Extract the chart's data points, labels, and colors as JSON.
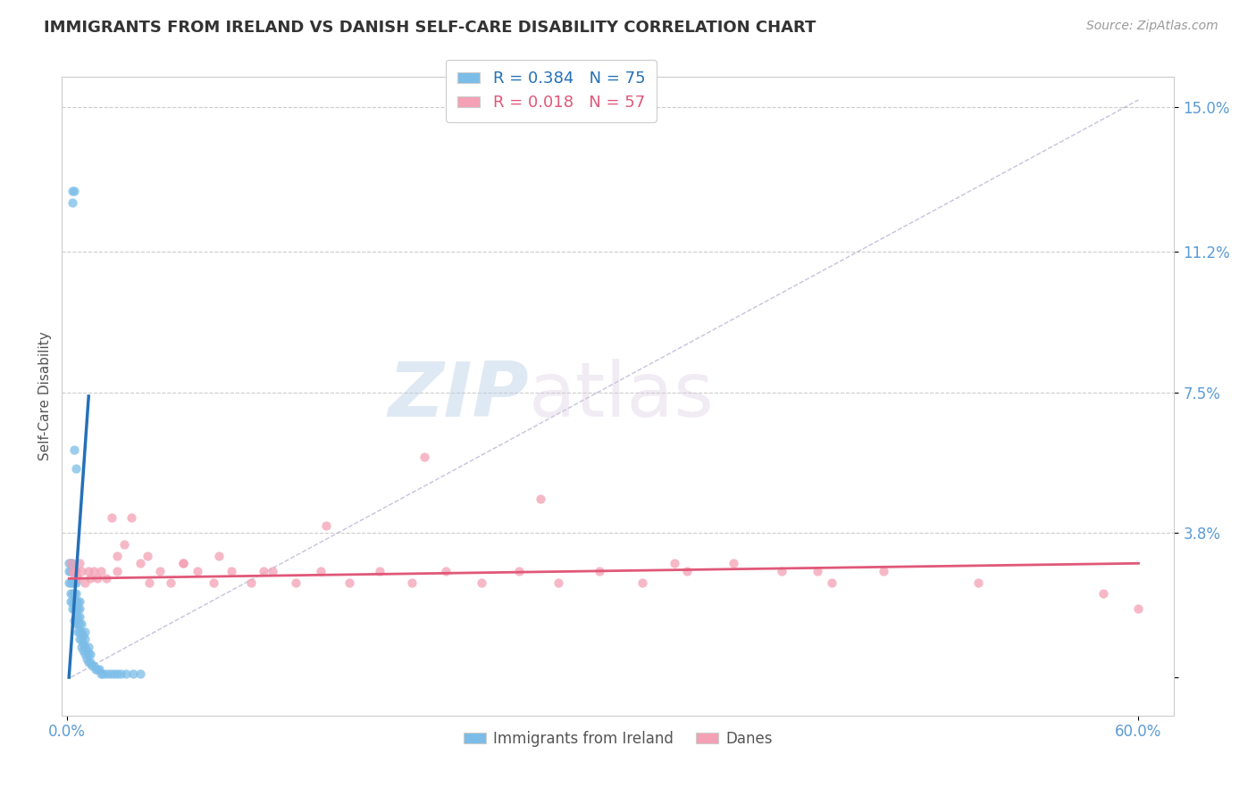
{
  "title": "IMMIGRANTS FROM IRELAND VS DANISH SELF-CARE DISABILITY CORRELATION CHART",
  "source": "Source: ZipAtlas.com",
  "ylabel": "Self-Care Disability",
  "yticks": [
    0.0,
    0.038,
    0.075,
    0.112,
    0.15
  ],
  "ytick_labels": [
    "",
    "3.8%",
    "7.5%",
    "11.2%",
    "15.0%"
  ],
  "xlim": [
    -0.003,
    0.62
  ],
  "ylim": [
    -0.01,
    0.158
  ],
  "legend_1_label": "Immigrants from Ireland",
  "legend_2_label": "Danes",
  "r1": 0.384,
  "n1": 75,
  "r2": 0.018,
  "n2": 57,
  "color_blue": "#7bbde8",
  "color_pink": "#f4a0b5",
  "color_line_blue": "#2471b8",
  "color_line_pink": "#e05878",
  "watermark_zip": "ZIP",
  "watermark_atlas": "atlas",
  "background_color": "#ffffff",
  "grid_color": "#cccccc",
  "title_color": "#333333",
  "axis_label_color": "#5b9bd5",
  "ireland_x": [
    0.001,
    0.001,
    0.001,
    0.002,
    0.002,
    0.002,
    0.002,
    0.002,
    0.003,
    0.003,
    0.003,
    0.003,
    0.003,
    0.003,
    0.004,
    0.004,
    0.004,
    0.004,
    0.004,
    0.004,
    0.005,
    0.005,
    0.005,
    0.005,
    0.005,
    0.005,
    0.006,
    0.006,
    0.006,
    0.006,
    0.006,
    0.007,
    0.007,
    0.007,
    0.007,
    0.007,
    0.007,
    0.008,
    0.008,
    0.008,
    0.008,
    0.009,
    0.009,
    0.009,
    0.01,
    0.01,
    0.01,
    0.01,
    0.011,
    0.011,
    0.012,
    0.012,
    0.012,
    0.013,
    0.013,
    0.014,
    0.015,
    0.016,
    0.017,
    0.018,
    0.019,
    0.02,
    0.022,
    0.024,
    0.026,
    0.028,
    0.03,
    0.033,
    0.037,
    0.041,
    0.003,
    0.004,
    0.003,
    0.004,
    0.005
  ],
  "ireland_y": [
    0.025,
    0.028,
    0.03,
    0.02,
    0.022,
    0.025,
    0.028,
    0.03,
    0.018,
    0.02,
    0.022,
    0.025,
    0.028,
    0.03,
    0.015,
    0.018,
    0.02,
    0.022,
    0.025,
    0.028,
    0.014,
    0.016,
    0.018,
    0.02,
    0.022,
    0.025,
    0.012,
    0.014,
    0.016,
    0.018,
    0.02,
    0.01,
    0.012,
    0.014,
    0.016,
    0.018,
    0.02,
    0.008,
    0.01,
    0.012,
    0.014,
    0.007,
    0.009,
    0.011,
    0.006,
    0.008,
    0.01,
    0.012,
    0.005,
    0.007,
    0.004,
    0.006,
    0.008,
    0.004,
    0.006,
    0.003,
    0.003,
    0.002,
    0.002,
    0.002,
    0.001,
    0.001,
    0.001,
    0.001,
    0.001,
    0.001,
    0.001,
    0.001,
    0.001,
    0.001,
    0.128,
    0.128,
    0.125,
    0.06,
    0.055
  ],
  "danes_x": [
    0.002,
    0.003,
    0.004,
    0.005,
    0.006,
    0.007,
    0.008,
    0.01,
    0.012,
    0.013,
    0.015,
    0.017,
    0.019,
    0.022,
    0.025,
    0.028,
    0.032,
    0.036,
    0.041,
    0.046,
    0.052,
    0.058,
    0.065,
    0.073,
    0.082,
    0.092,
    0.103,
    0.115,
    0.128,
    0.142,
    0.158,
    0.175,
    0.193,
    0.212,
    0.232,
    0.253,
    0.275,
    0.298,
    0.322,
    0.347,
    0.373,
    0.4,
    0.428,
    0.457,
    0.028,
    0.045,
    0.065,
    0.085,
    0.11,
    0.145,
    0.2,
    0.265,
    0.34,
    0.42,
    0.51,
    0.58,
    0.6
  ],
  "danes_y": [
    0.03,
    0.028,
    0.027,
    0.028,
    0.026,
    0.03,
    0.028,
    0.025,
    0.028,
    0.026,
    0.028,
    0.026,
    0.028,
    0.026,
    0.042,
    0.028,
    0.035,
    0.042,
    0.03,
    0.025,
    0.028,
    0.025,
    0.03,
    0.028,
    0.025,
    0.028,
    0.025,
    0.028,
    0.025,
    0.028,
    0.025,
    0.028,
    0.025,
    0.028,
    0.025,
    0.028,
    0.025,
    0.028,
    0.025,
    0.028,
    0.03,
    0.028,
    0.025,
    0.028,
    0.032,
    0.032,
    0.03,
    0.032,
    0.028,
    0.04,
    0.058,
    0.047,
    0.03,
    0.028,
    0.025,
    0.022,
    0.018
  ]
}
